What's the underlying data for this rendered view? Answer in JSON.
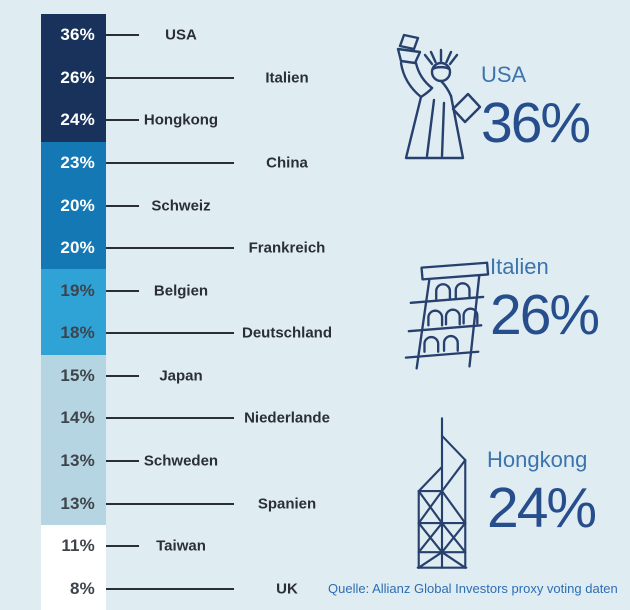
{
  "chart_data": {
    "type": "bar",
    "title": "",
    "unit": "percent",
    "legend": "none",
    "grid": false,
    "categories": [
      "USA",
      "Italien",
      "Hongkong",
      "China",
      "Schweiz",
      "Frankreich",
      "Belgien",
      "Deutschland",
      "Japan",
      "Niederlande",
      "Schweden",
      "Spanien",
      "Taiwan",
      "UK"
    ],
    "values": [
      36,
      26,
      24,
      23,
      20,
      20,
      19,
      18,
      15,
      14,
      13,
      13,
      11,
      8
    ],
    "rows": [
      {
        "country": "USA",
        "pct": "36%",
        "band": "navy",
        "line": "short"
      },
      {
        "country": "Italien",
        "pct": "26%",
        "band": "navy",
        "line": "long"
      },
      {
        "country": "Hongkong",
        "pct": "24%",
        "band": "navy",
        "line": "short"
      },
      {
        "country": "China",
        "pct": "23%",
        "band": "medium",
        "line": "long"
      },
      {
        "country": "Schweiz",
        "pct": "20%",
        "band": "medium",
        "line": "short"
      },
      {
        "country": "Frankreich",
        "pct": "20%",
        "band": "medium",
        "line": "long"
      },
      {
        "country": "Belgien",
        "pct": "19%",
        "band": "bright",
        "line": "short"
      },
      {
        "country": "Deutschland",
        "pct": "18%",
        "band": "bright",
        "line": "long"
      },
      {
        "country": "Japan",
        "pct": "15%",
        "band": "light",
        "line": "short"
      },
      {
        "country": "Niederlande",
        "pct": "14%",
        "band": "light",
        "line": "long"
      },
      {
        "country": "Schweden",
        "pct": "13%",
        "band": "light",
        "line": "short"
      },
      {
        "country": "Spanien",
        "pct": "13%",
        "band": "light",
        "line": "long"
      },
      {
        "country": "Taiwan",
        "pct": "11%",
        "band": "white",
        "line": "short"
      },
      {
        "country": "UK",
        "pct": "8%",
        "band": "white",
        "line": "long"
      }
    ],
    "band_colors": {
      "navy": "#18325C",
      "medium": "#1478B5",
      "bright": "#2FA2D6",
      "light": "#B4D5E1",
      "white": "#FFFFFF"
    }
  },
  "callouts": [
    {
      "label": "USA",
      "value": "36%",
      "icon": "statue-of-liberty-icon"
    },
    {
      "label": "Italien",
      "value": "26%",
      "icon": "pisa-tower-icon"
    },
    {
      "label": "Hongkong",
      "value": "24%",
      "icon": "bank-of-china-tower-icon"
    }
  ],
  "source_note": "Quelle: Allianz Global Investors proxy voting daten",
  "colors": {
    "background": "#DFECF2",
    "leader_line": "#2B2E36",
    "country_label_text": "#2B2E36",
    "pct_text_on_dark": "#FFFFFF",
    "pct_text_on_light": "#3F444C",
    "callout_label": "#3D74AE",
    "callout_value": "#264E8D",
    "icon_stroke": "#27406D",
    "source_text": "#2D6EB4"
  }
}
